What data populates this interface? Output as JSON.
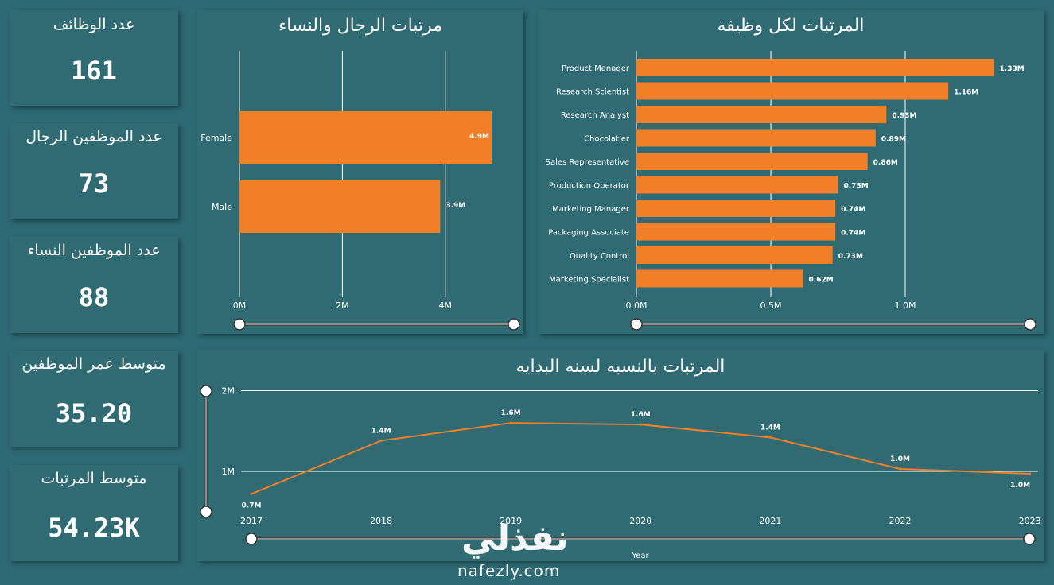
{
  "kpis": [
    {
      "label": "عدد الوظائف",
      "value": "161"
    },
    {
      "label": "عدد الموظفين الرجال",
      "value": "73"
    },
    {
      "label": "عدد الموظفين النساء",
      "value": "88"
    },
    {
      "label": "متوسط عمر الموظفين",
      "value": "35.20"
    },
    {
      "label": "متوسط المرتبات",
      "value": "54.23K"
    }
  ],
  "chart_data": [
    {
      "id": "gender",
      "type": "bar",
      "orientation": "horizontal",
      "title": "مرتبات الرجال والنساء",
      "categories": [
        "Female",
        "Male"
      ],
      "values": [
        4.9,
        3.9
      ],
      "data_labels": [
        "4.9M",
        "3.9M"
      ],
      "xlim": [
        0,
        5
      ],
      "xticks": [
        0,
        2,
        4
      ],
      "xtick_labels": [
        "0M",
        "2M",
        "4M"
      ],
      "grid": true,
      "color": "#f07f27"
    },
    {
      "id": "jobs",
      "type": "bar",
      "orientation": "horizontal",
      "title": "المرتبات لكل وظيفه",
      "categories": [
        "Product Manager",
        "Research Scientist",
        "Research Analyst",
        "Chocolatier",
        "Sales Representative",
        "Production Operator",
        "Marketing Manager",
        "Packaging Associate",
        "Quality Control",
        "Marketing Specialist"
      ],
      "values": [
        1.33,
        1.16,
        0.93,
        0.89,
        0.86,
        0.75,
        0.74,
        0.74,
        0.73,
        0.62
      ],
      "data_labels": [
        "1.33M",
        "1.16M",
        "0.93M",
        "0.89M",
        "0.86M",
        "0.75M",
        "0.74M",
        "0.74M",
        "0.73M",
        "0.62M"
      ],
      "xlim": [
        0,
        1.4
      ],
      "xticks": [
        0,
        0.5,
        1.0
      ],
      "xtick_labels": [
        "0.0M",
        "0.5M",
        "1.0M"
      ],
      "grid": true,
      "color": "#f07f27"
    },
    {
      "id": "years",
      "type": "line",
      "title": "المرتبات بالنسبه لسنه البدايه",
      "xlabel": "Year",
      "x": [
        "2017",
        "2018",
        "2019",
        "2020",
        "2021",
        "2022",
        "2023"
      ],
      "values": [
        0.72,
        1.38,
        1.6,
        1.58,
        1.42,
        1.03,
        0.97
      ],
      "data_labels": [
        "0.7M",
        "1.4M",
        "1.6M",
        "1.6M",
        "1.4M",
        "1.0M",
        "1.0M"
      ],
      "ylim": [
        0.55,
        2.0
      ],
      "yticks": [
        1,
        2
      ],
      "ytick_labels": [
        "1M",
        "2M"
      ],
      "grid": true,
      "color": "#f07f27"
    }
  ],
  "watermark": {
    "arabic": "نفذلي",
    "latin": "nafezly.com"
  }
}
